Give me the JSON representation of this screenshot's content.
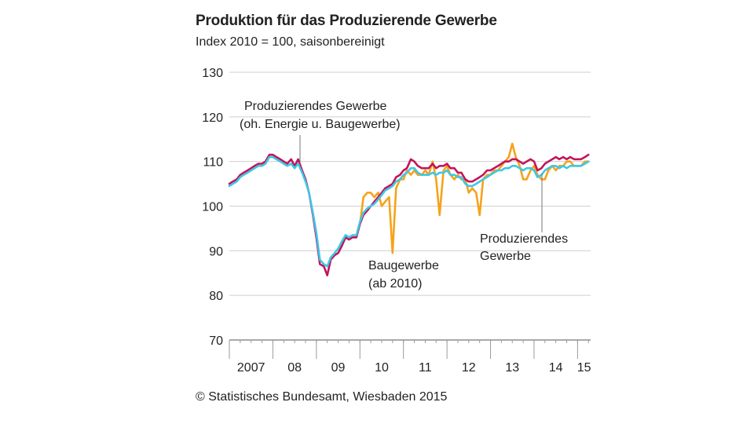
{
  "chart_data": {
    "type": "line",
    "title": "Produktion für das Produzierende Gewerbe",
    "subtitle": "Index 2010 = 100, saisonbereinigt",
    "source": "© Statistisches Bundesamt, Wiesbaden 2015",
    "ylim": [
      70,
      130
    ],
    "yticks": [
      70,
      80,
      90,
      100,
      110,
      120,
      130
    ],
    "xlim": [
      2007.0,
      2015.3
    ],
    "xticks": [
      {
        "label": "2007",
        "x": 2007.0
      },
      {
        "label": "08",
        "x": 2008.0
      },
      {
        "label": "09",
        "x": 2009.0
      },
      {
        "label": "10",
        "x": 2010.0
      },
      {
        "label": "11",
        "x": 2011.0
      },
      {
        "label": "12",
        "x": 2012.0
      },
      {
        "label": "13",
        "x": 2013.0
      },
      {
        "label": "14",
        "x": 2014.0
      },
      {
        "label": "15",
        "x": 2015.0
      }
    ],
    "grid": true,
    "series": [
      {
        "name": "Baugewerbe (ab 2010)",
        "color": "#f5a31a",
        "x": [
          2010.0,
          2010.08,
          2010.17,
          2010.25,
          2010.33,
          2010.42,
          2010.5,
          2010.58,
          2010.67,
          2010.75,
          2010.83,
          2010.92,
          2011.0,
          2011.08,
          2011.17,
          2011.25,
          2011.33,
          2011.42,
          2011.5,
          2011.58,
          2011.67,
          2011.75,
          2011.83,
          2011.92,
          2012.0,
          2012.08,
          2012.17,
          2012.25,
          2012.33,
          2012.42,
          2012.5,
          2012.58,
          2012.67,
          2012.75,
          2012.83,
          2012.92,
          2013.0,
          2013.08,
          2013.17,
          2013.25,
          2013.33,
          2013.42,
          2013.5,
          2013.58,
          2013.67,
          2013.75,
          2013.83,
          2013.92,
          2014.0,
          2014.08,
          2014.17,
          2014.25,
          2014.33,
          2014.42,
          2014.5,
          2014.58,
          2014.67,
          2014.75,
          2014.83,
          2014.92,
          2015.0,
          2015.08,
          2015.17,
          2015.25
        ],
        "y": [
          96,
          102,
          103,
          103,
          102,
          103,
          100,
          101,
          102,
          89.5,
          104,
          106,
          106,
          108,
          107,
          108,
          107,
          107,
          108,
          107,
          110,
          106,
          98,
          108,
          109,
          107,
          106,
          107,
          106,
          106,
          103,
          104,
          103,
          98,
          106,
          107,
          107,
          108,
          108,
          109,
          110,
          111,
          114,
          111,
          109,
          106,
          106,
          108,
          109,
          107,
          106,
          106,
          108,
          109,
          108,
          109,
          109,
          110,
          110,
          109,
          109,
          109,
          110,
          110
        ]
      },
      {
        "name": "Produzierendes Gewerbe (oh. Energie u. Baugewerbe)",
        "color": "#c4145a",
        "x": [
          2007.0,
          2007.08,
          2007.17,
          2007.25,
          2007.33,
          2007.42,
          2007.5,
          2007.58,
          2007.67,
          2007.75,
          2007.83,
          2007.92,
          2008.0,
          2008.08,
          2008.17,
          2008.25,
          2008.33,
          2008.42,
          2008.5,
          2008.58,
          2008.67,
          2008.75,
          2008.83,
          2008.92,
          2009.0,
          2009.08,
          2009.17,
          2009.25,
          2009.33,
          2009.42,
          2009.5,
          2009.58,
          2009.67,
          2009.75,
          2009.83,
          2009.92,
          2010.0,
          2010.08,
          2010.17,
          2010.25,
          2010.33,
          2010.42,
          2010.5,
          2010.58,
          2010.67,
          2010.75,
          2010.83,
          2010.92,
          2011.0,
          2011.08,
          2011.17,
          2011.25,
          2011.33,
          2011.42,
          2011.5,
          2011.58,
          2011.67,
          2011.75,
          2011.83,
          2011.92,
          2012.0,
          2012.08,
          2012.17,
          2012.25,
          2012.33,
          2012.42,
          2012.5,
          2012.58,
          2012.67,
          2012.75,
          2012.83,
          2012.92,
          2013.0,
          2013.08,
          2013.17,
          2013.25,
          2013.33,
          2013.42,
          2013.5,
          2013.58,
          2013.67,
          2013.75,
          2013.83,
          2013.92,
          2014.0,
          2014.08,
          2014.17,
          2014.25,
          2014.33,
          2014.42,
          2014.5,
          2014.58,
          2014.67,
          2014.75,
          2014.83,
          2014.92,
          2015.0,
          2015.08,
          2015.17,
          2015.25
        ],
        "y": [
          105,
          105.5,
          106,
          107,
          107.5,
          108,
          108.5,
          109,
          109.5,
          109.5,
          110,
          111.5,
          111.5,
          111,
          110.5,
          110,
          109.5,
          110.5,
          109,
          110.5,
          108,
          106,
          103,
          98,
          93,
          87,
          86.5,
          84.5,
          88,
          89,
          89.5,
          91,
          93,
          92.5,
          93,
          93,
          96,
          98,
          99,
          100,
          101,
          102,
          103,
          104,
          104.5,
          105,
          106.5,
          107,
          108,
          108.5,
          110.5,
          110,
          109,
          108.5,
          108.5,
          108.5,
          109.5,
          108.5,
          109,
          109,
          109.5,
          108.5,
          108.5,
          107.5,
          107.5,
          106,
          105.5,
          105.5,
          106,
          106.5,
          107,
          108,
          108,
          108.5,
          109,
          109.5,
          110,
          110,
          110.5,
          110.5,
          110,
          109.5,
          110,
          110.5,
          110,
          108,
          108.5,
          109.5,
          110,
          110.5,
          111,
          110.5,
          111,
          110.5,
          111,
          110.5,
          110.5,
          110.5,
          111,
          111.5
        ]
      },
      {
        "name": "Produzierendes Gewerbe",
        "color": "#3cc8e6",
        "x": [
          2007.0,
          2007.08,
          2007.17,
          2007.25,
          2007.33,
          2007.42,
          2007.5,
          2007.58,
          2007.67,
          2007.75,
          2007.83,
          2007.92,
          2008.0,
          2008.08,
          2008.17,
          2008.25,
          2008.33,
          2008.42,
          2008.5,
          2008.58,
          2008.67,
          2008.75,
          2008.83,
          2008.92,
          2009.0,
          2009.08,
          2009.17,
          2009.25,
          2009.33,
          2009.42,
          2009.5,
          2009.58,
          2009.67,
          2009.75,
          2009.83,
          2009.92,
          2010.0,
          2010.08,
          2010.17,
          2010.25,
          2010.33,
          2010.42,
          2010.5,
          2010.58,
          2010.67,
          2010.75,
          2010.83,
          2010.92,
          2011.0,
          2011.08,
          2011.17,
          2011.25,
          2011.33,
          2011.42,
          2011.5,
          2011.58,
          2011.67,
          2011.75,
          2011.83,
          2011.92,
          2012.0,
          2012.08,
          2012.17,
          2012.25,
          2012.33,
          2012.42,
          2012.5,
          2012.58,
          2012.67,
          2012.75,
          2012.83,
          2012.92,
          2013.0,
          2013.08,
          2013.17,
          2013.25,
          2013.33,
          2013.42,
          2013.5,
          2013.58,
          2013.67,
          2013.75,
          2013.83,
          2013.92,
          2014.0,
          2014.08,
          2014.17,
          2014.25,
          2014.33,
          2014.42,
          2014.5,
          2014.58,
          2014.67,
          2014.75,
          2014.83,
          2014.92,
          2015.0,
          2015.08,
          2015.17,
          2015.25
        ],
        "y": [
          104.5,
          105,
          105.5,
          106.5,
          107,
          107.5,
          108,
          108.5,
          109,
          109,
          109.5,
          111,
          111,
          110.5,
          110,
          109.5,
          109,
          109.5,
          108.5,
          109.5,
          107.5,
          105.5,
          103,
          98.5,
          94,
          88,
          87,
          86.5,
          88.5,
          89.5,
          90.5,
          92,
          93.5,
          93,
          93.5,
          93.5,
          96.5,
          98.5,
          99.5,
          100,
          100.5,
          101.5,
          102.5,
          103.5,
          104,
          104.5,
          105.5,
          106,
          107,
          107.5,
          108.5,
          108.5,
          107.5,
          107,
          107,
          107,
          107.5,
          107,
          107.5,
          107.5,
          108,
          107,
          107,
          106.5,
          106.5,
          105,
          104.5,
          104.5,
          105,
          105.5,
          106,
          106.5,
          107,
          107.5,
          108,
          108,
          108.5,
          108.5,
          109,
          109,
          108.5,
          108,
          108.5,
          108.5,
          108,
          106.5,
          107,
          108,
          108.5,
          109,
          109,
          108.5,
          109,
          108.5,
          109,
          109,
          109,
          109,
          109.5,
          110
        ]
      }
    ],
    "annotations": [
      {
        "lines": [
          "Produzierendes Gewerbe",
          "(oh. Energie u. Baugewerbe)"
        ]
      },
      {
        "lines": [
          "Baugewerbe",
          "(ab 2010)"
        ]
      },
      {
        "lines": [
          "Produzierendes",
          "Gewerbe"
        ]
      }
    ]
  }
}
